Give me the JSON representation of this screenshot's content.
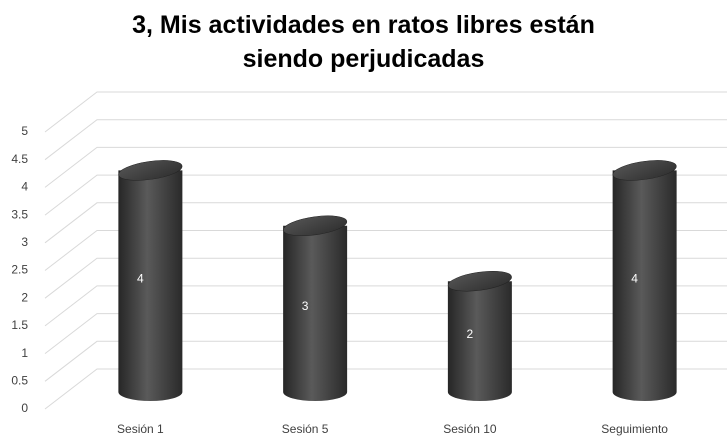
{
  "chart_data": {
    "type": "bar",
    "title": "3, Mis actividades en ratos libres están siendo perjudicadas",
    "categories": [
      "Sesión 1",
      "Sesión 5",
      "Sesión 10",
      "Seguimiento"
    ],
    "values": [
      4,
      3,
      2,
      4
    ],
    "color": "#3c3c3c",
    "ylim": [
      0,
      5
    ],
    "yticks": [
      0,
      0.5,
      1,
      1.5,
      2,
      2.5,
      3,
      3.5,
      4,
      4.5,
      5
    ],
    "grid": true
  }
}
